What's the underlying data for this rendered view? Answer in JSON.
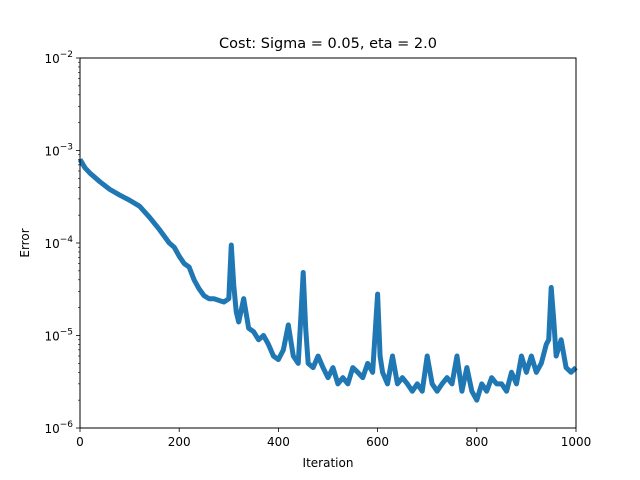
{
  "chart_data": {
    "type": "line",
    "title": "Cost: Sigma = 0.05, eta = 2.0",
    "xlabel": "Iteration",
    "ylabel": "Error",
    "xlim": [
      0,
      1000
    ],
    "ylim": [
      1e-06,
      0.01
    ],
    "yscale": "log",
    "grid": false,
    "legend": "none",
    "line_color": "#1f77b4",
    "xticks": [
      {
        "value": 0,
        "label": "0"
      },
      {
        "value": 200,
        "label": "200"
      },
      {
        "value": 400,
        "label": "400"
      },
      {
        "value": 600,
        "label": "600"
      },
      {
        "value": 800,
        "label": "800"
      },
      {
        "value": 1000,
        "label": "1000"
      }
    ],
    "yticks": [
      {
        "value": 1e-06,
        "base": "10",
        "exp": "−6"
      },
      {
        "value": 1e-05,
        "base": "10",
        "exp": "−5"
      },
      {
        "value": 0.0001,
        "base": "10",
        "exp": "−4"
      },
      {
        "value": 0.001,
        "base": "10",
        "exp": "−3"
      },
      {
        "value": 0.01,
        "base": "10",
        "exp": "−2"
      }
    ],
    "series": [
      {
        "x": [
          0,
          10,
          20,
          40,
          60,
          80,
          100,
          120,
          140,
          160,
          180,
          190,
          200,
          210,
          220,
          230,
          240,
          250,
          260,
          270,
          280,
          290,
          300,
          305,
          310,
          315,
          320,
          330,
          340,
          350,
          360,
          370,
          380,
          390,
          400,
          410,
          420,
          430,
          440,
          445,
          450,
          455,
          460,
          470,
          480,
          490,
          500,
          510,
          520,
          530,
          540,
          550,
          560,
          570,
          580,
          590,
          600,
          605,
          610,
          620,
          630,
          640,
          650,
          660,
          670,
          680,
          690,
          700,
          710,
          720,
          730,
          740,
          750,
          760,
          770,
          780,
          790,
          800,
          810,
          820,
          830,
          840,
          850,
          860,
          870,
          880,
          890,
          900,
          910,
          920,
          930,
          940,
          945,
          950,
          955,
          960,
          970,
          980,
          990,
          1000
        ],
        "y": [
          0.0008,
          0.00065,
          0.00057,
          0.00046,
          0.00038,
          0.00033,
          0.00029,
          0.00025,
          0.00019,
          0.00014,
          0.0001,
          9e-05,
          7.2e-05,
          6e-05,
          5.5e-05,
          4e-05,
          3.2e-05,
          2.7e-05,
          2.5e-05,
          2.5e-05,
          2.4e-05,
          2.3e-05,
          2.5e-05,
          9.5e-05,
          3.5e-05,
          1.8e-05,
          1.4e-05,
          2.5e-05,
          1.2e-05,
          1.1e-05,
          9e-06,
          1e-05,
          8e-06,
          6e-06,
          5.5e-06,
          7e-06,
          1.3e-05,
          6e-06,
          5e-06,
          1.5e-05,
          4.8e-05,
          1.2e-05,
          5e-06,
          4.5e-06,
          6e-06,
          4.5e-06,
          3.5e-06,
          4.5e-06,
          3e-06,
          3.5e-06,
          3e-06,
          4.5e-06,
          4e-06,
          3.5e-06,
          5e-06,
          4e-06,
          2.8e-05,
          6e-06,
          4e-06,
          3e-06,
          6e-06,
          3e-06,
          3.5e-06,
          3e-06,
          2.5e-06,
          3e-06,
          2.5e-06,
          6e-06,
          3e-06,
          2.5e-06,
          3e-06,
          3.5e-06,
          3e-06,
          6e-06,
          2.5e-06,
          4.5e-06,
          2.5e-06,
          2e-06,
          3e-06,
          2.5e-06,
          3.5e-06,
          3e-06,
          3e-06,
          2.5e-06,
          4e-06,
          3e-06,
          6e-06,
          4e-06,
          6e-06,
          4e-06,
          5e-06,
          8e-06,
          9e-06,
          3.3e-05,
          1.5e-05,
          6e-06,
          9e-06,
          4.5e-06,
          4e-06,
          4.5e-06
        ]
      }
    ]
  }
}
